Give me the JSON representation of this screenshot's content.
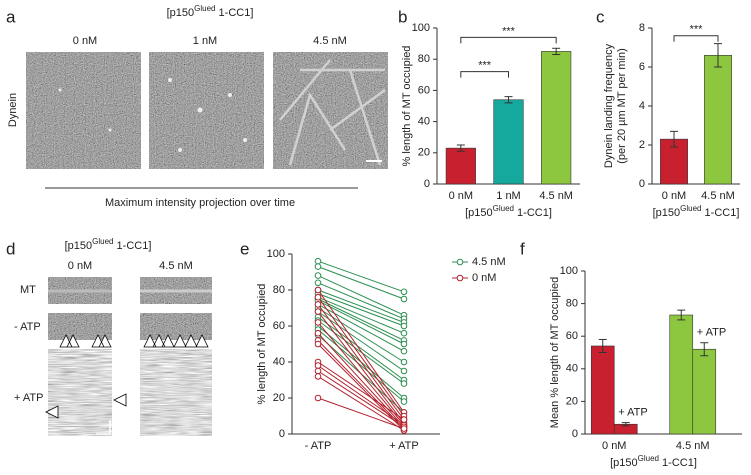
{
  "panel_a": {
    "letter": "a",
    "title_parts": [
      "[p150",
      "Glued",
      " 1-CC1]"
    ],
    "columns": [
      "0 nM",
      "1 nM",
      "4.5 nM"
    ],
    "row_label": "Dynein",
    "caption": "Maximum intensity projection over time"
  },
  "panel_d": {
    "letter": "d",
    "title_parts": [
      "[p150",
      "Glued",
      " 1-CC1]"
    ],
    "columns": [
      "0 nM",
      "4.5 nM"
    ],
    "rows": [
      "MT",
      "- ATP",
      "+ ATP"
    ]
  },
  "chart_data": [
    {
      "type": "bar",
      "panel": "b",
      "ylabel": [
        "% length of MT occupied"
      ],
      "xlabel_parts": [
        "[p150",
        "Glued",
        " 1-CC1]"
      ],
      "categories": [
        "0 nM",
        "1 nM",
        "4.5 nM"
      ],
      "values": [
        23,
        54,
        85
      ],
      "errors": [
        2,
        2,
        2
      ],
      "colors": [
        "#c8202f",
        "#14a99c",
        "#8dc63f"
      ],
      "ylim": [
        0,
        100
      ],
      "yticks": [
        0,
        20,
        40,
        60,
        80,
        100
      ],
      "significance": [
        {
          "from": 0,
          "to": 1,
          "level": 72,
          "label": "***"
        },
        {
          "from": 0,
          "to": 2,
          "level": 94,
          "label": "***"
        }
      ]
    },
    {
      "type": "bar",
      "panel": "c",
      "ylabel": [
        "Dynein landing frequency",
        "(per 20 µm MT per min)"
      ],
      "xlabel_parts": [
        "[p150",
        "Glued",
        " 1-CC1]"
      ],
      "categories": [
        "0 nM",
        "4.5 nM"
      ],
      "values": [
        2.3,
        6.6
      ],
      "errors": [
        0.4,
        0.6
      ],
      "colors": [
        "#c8202f",
        "#8dc63f"
      ],
      "ylim": [
        0,
        8
      ],
      "yticks": [
        0,
        2,
        4,
        6,
        8
      ],
      "significance": [
        {
          "from": 0,
          "to": 1,
          "level": 7.6,
          "label": "***"
        }
      ]
    },
    {
      "type": "paired",
      "panel": "e",
      "ylabel": [
        "% length of MT occupied"
      ],
      "categories": [
        "- ATP",
        "+ ATP"
      ],
      "ylim": [
        0,
        100
      ],
      "yticks": [
        0,
        20,
        40,
        60,
        80,
        100
      ],
      "series": [
        {
          "name": "4.5 nM",
          "color": "#2a8f4f",
          "lines": [
            [
              96,
              79
            ],
            [
              93,
              75
            ],
            [
              88,
              66
            ],
            [
              84,
              64
            ],
            [
              80,
              62
            ],
            [
              78,
              60
            ],
            [
              76,
              56
            ],
            [
              75,
              52
            ],
            [
              74,
              50
            ],
            [
              72,
              46
            ],
            [
              70,
              40
            ],
            [
              68,
              35
            ],
            [
              65,
              30
            ],
            [
              63,
              28
            ],
            [
              60,
              20
            ],
            [
              58,
              18
            ],
            [
              55,
              12
            ]
          ]
        },
        {
          "name": "0 nM",
          "color": "#b3202c",
          "lines": [
            [
              80,
              12
            ],
            [
              76,
              10
            ],
            [
              72,
              8
            ],
            [
              68,
              6
            ],
            [
              62,
              5
            ],
            [
              56,
              4
            ],
            [
              52,
              3
            ],
            [
              50,
              2
            ],
            [
              40,
              8
            ],
            [
              38,
              5
            ],
            [
              35,
              4
            ],
            [
              32,
              2
            ],
            [
              20,
              3
            ]
          ]
        }
      ]
    },
    {
      "type": "groupbar",
      "panel": "f",
      "ylabel": [
        "Mean % length of MT occupied"
      ],
      "xlabel_parts": [
        "[p150",
        "Glued",
        " 1-CC1]"
      ],
      "categories": [
        "0 nM",
        "4.5 nM"
      ],
      "colors": [
        "#c8202f",
        "#8dc63f"
      ],
      "ylim": [
        0,
        100
      ],
      "yticks": [
        0,
        20,
        40,
        60,
        80,
        100
      ],
      "series": [
        {
          "values": [
            54,
            73
          ],
          "errors": [
            4,
            3
          ]
        },
        {
          "values": [
            6,
            52
          ],
          "errors": [
            1,
            4
          ],
          "label": "+ ATP"
        }
      ]
    }
  ]
}
